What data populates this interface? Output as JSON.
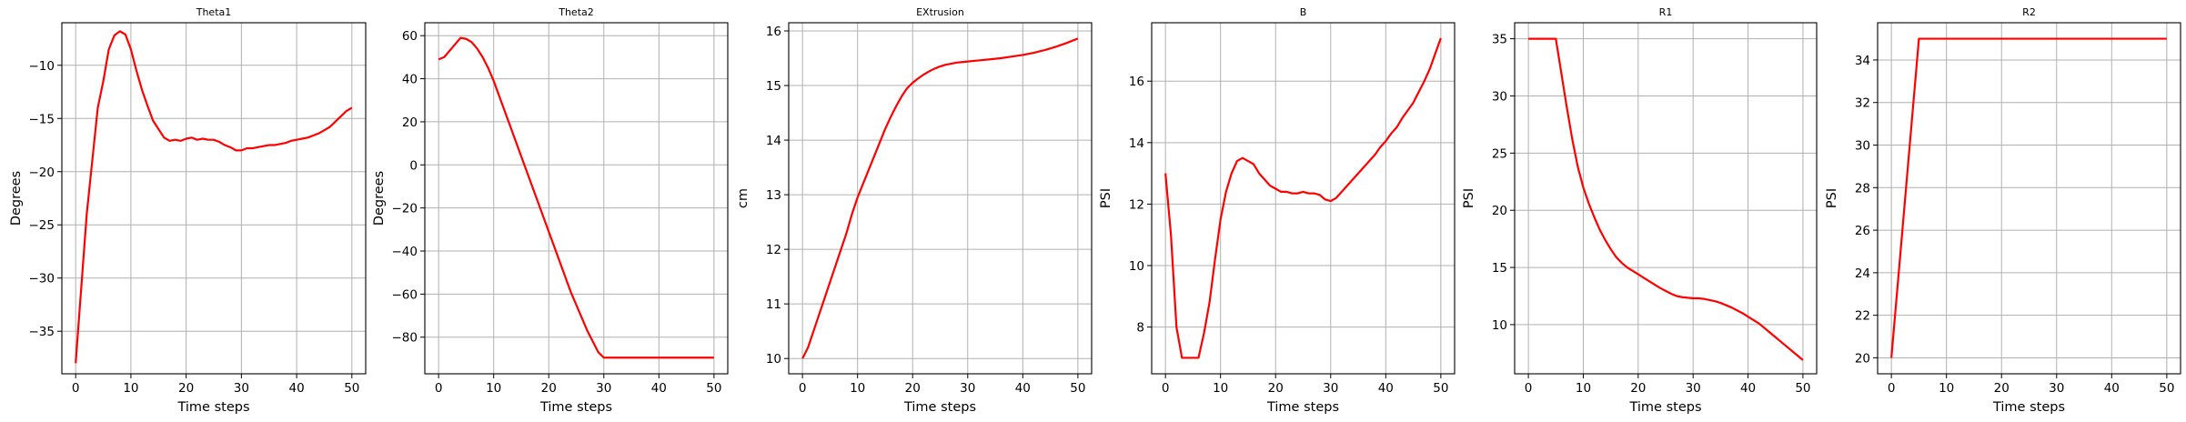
{
  "figure": {
    "background": "#ffffff",
    "line_color": "#ff0000",
    "grid_color": "#b0b0b0"
  },
  "chart_data": [
    {
      "type": "line",
      "title": "Theta1",
      "xlabel": "Time steps",
      "ylabel": "Degrees",
      "xlim": [
        -2.5,
        52.5
      ],
      "ylim": [
        -39,
        -6
      ],
      "xticks": [
        0,
        10,
        20,
        30,
        40,
        50
      ],
      "yticks": [
        -35,
        -30,
        -25,
        -20,
        -15,
        -10
      ],
      "grid": true,
      "series": [
        {
          "color": "#ff0000",
          "x": [
            0,
            1,
            2,
            3,
            4,
            5,
            6,
            7,
            8,
            9,
            10,
            11,
            12,
            13,
            14,
            15,
            16,
            17,
            18,
            19,
            20,
            21,
            22,
            23,
            24,
            25,
            26,
            27,
            28,
            29,
            30,
            31,
            32,
            33,
            34,
            35,
            36,
            37,
            38,
            39,
            40,
            41,
            42,
            43,
            44,
            45,
            46,
            47,
            48,
            49,
            50
          ],
          "y": [
            -38,
            -31,
            -24,
            -19,
            -14,
            -11.5,
            -8.5,
            -7.2,
            -6.8,
            -7.1,
            -8.5,
            -10.5,
            -12.3,
            -13.8,
            -15.2,
            -16,
            -16.8,
            -17.1,
            -17,
            -17.1,
            -16.9,
            -16.8,
            -17,
            -16.9,
            -17,
            -17,
            -17.2,
            -17.5,
            -17.7,
            -18,
            -18,
            -17.8,
            -17.8,
            -17.7,
            -17.6,
            -17.5,
            -17.5,
            -17.4,
            -17.3,
            -17.1,
            -17,
            -16.9,
            -16.8,
            -16.6,
            -16.4,
            -16.1,
            -15.8,
            -15.3,
            -14.8,
            -14.3,
            -14
          ]
        }
      ]
    },
    {
      "type": "line",
      "title": "Theta2",
      "xlabel": "Time steps",
      "ylabel": "Degrees",
      "xlim": [
        -2.5,
        52.5
      ],
      "ylim": [
        -97,
        66
      ],
      "xticks": [
        0,
        10,
        20,
        30,
        40,
        50
      ],
      "yticks": [
        -80,
        -60,
        -40,
        -20,
        0,
        20,
        40,
        60
      ],
      "grid": true,
      "series": [
        {
          "color": "#ff0000",
          "x": [
            0,
            1,
            2,
            3,
            4,
            5,
            6,
            7,
            8,
            9,
            10,
            11,
            12,
            13,
            14,
            15,
            16,
            17,
            18,
            19,
            20,
            21,
            22,
            23,
            24,
            25,
            26,
            27,
            28,
            29,
            30,
            35,
            40,
            45,
            50
          ],
          "y": [
            49,
            50,
            53,
            56,
            59,
            58.5,
            57,
            54,
            50,
            45,
            39,
            32,
            25,
            18,
            11,
            4,
            -3,
            -10,
            -17,
            -24,
            -31,
            -38,
            -45,
            -52,
            -59,
            -65,
            -71,
            -77,
            -82,
            -87,
            -89.5,
            -89.5,
            -89.5,
            -89.5,
            -89.5
          ]
        }
      ]
    },
    {
      "type": "line",
      "title": "EXtrusion",
      "xlabel": "Time steps",
      "ylabel": "cm",
      "xlim": [
        -2.5,
        52.5
      ],
      "ylim": [
        9.72,
        16.15
      ],
      "xticks": [
        0,
        10,
        20,
        30,
        40,
        50
      ],
      "yticks": [
        10,
        11,
        12,
        13,
        14,
        15,
        16
      ],
      "grid": true,
      "series": [
        {
          "color": "#ff0000",
          "x": [
            0,
            1,
            2,
            3,
            4,
            5,
            6,
            7,
            8,
            9,
            10,
            11,
            12,
            13,
            14,
            15,
            16,
            17,
            18,
            19,
            20,
            21,
            22,
            23,
            24,
            25,
            26,
            27,
            28,
            29,
            30,
            32,
            34,
            36,
            38,
            40,
            42,
            44,
            46,
            48,
            50
          ],
          "y": [
            10,
            10.2,
            10.5,
            10.8,
            11.1,
            11.4,
            11.7,
            12,
            12.3,
            12.65,
            12.95,
            13.2,
            13.45,
            13.7,
            13.95,
            14.2,
            14.42,
            14.62,
            14.8,
            14.95,
            15.05,
            15.13,
            15.2,
            15.26,
            15.31,
            15.35,
            15.38,
            15.4,
            15.42,
            15.43,
            15.44,
            15.46,
            15.48,
            15.5,
            15.53,
            15.56,
            15.6,
            15.65,
            15.71,
            15.78,
            15.86
          ]
        }
      ]
    },
    {
      "type": "line",
      "title": "B",
      "xlabel": "Time steps",
      "ylabel": "PSI",
      "xlim": [
        -2.5,
        52.5
      ],
      "ylim": [
        6.48,
        17.9
      ],
      "xticks": [
        0,
        10,
        20,
        30,
        40,
        50
      ],
      "yticks": [
        8,
        10,
        12,
        14,
        16
      ],
      "grid": true,
      "series": [
        {
          "color": "#ff0000",
          "x": [
            0,
            1,
            2,
            3,
            4,
            5,
            6,
            7,
            8,
            9,
            10,
            11,
            12,
            13,
            14,
            15,
            16,
            17,
            18,
            19,
            20,
            21,
            22,
            23,
            24,
            25,
            26,
            27,
            28,
            29,
            30,
            31,
            32,
            33,
            34,
            35,
            36,
            37,
            38,
            39,
            40,
            41,
            42,
            43,
            44,
            45,
            46,
            47,
            48,
            49,
            50
          ],
          "y": [
            13,
            11,
            8,
            7,
            7,
            7,
            7,
            7.8,
            8.8,
            10.2,
            11.5,
            12.4,
            13,
            13.4,
            13.5,
            13.4,
            13.3,
            13,
            12.8,
            12.6,
            12.5,
            12.4,
            12.4,
            12.35,
            12.35,
            12.4,
            12.35,
            12.35,
            12.3,
            12.15,
            12.1,
            12.2,
            12.4,
            12.6,
            12.8,
            13,
            13.2,
            13.4,
            13.6,
            13.85,
            14.05,
            14.3,
            14.5,
            14.8,
            15.05,
            15.3,
            15.65,
            16,
            16.4,
            16.9,
            17.4
          ]
        }
      ]
    },
    {
      "type": "line",
      "title": "R1",
      "xlabel": "Time steps",
      "ylabel": "PSI",
      "xlim": [
        -2.5,
        52.5
      ],
      "ylim": [
        5.7,
        36.4
      ],
      "xticks": [
        0,
        10,
        20,
        30,
        40,
        50
      ],
      "yticks": [
        10,
        15,
        20,
        25,
        30,
        35
      ],
      "grid": true,
      "series": [
        {
          "color": "#ff0000",
          "x": [
            0,
            1,
            2,
            3,
            4,
            5,
            6,
            7,
            8,
            9,
            10,
            11,
            12,
            13,
            14,
            15,
            16,
            17,
            18,
            19,
            20,
            21,
            22,
            23,
            24,
            25,
            26,
            27,
            28,
            29,
            30,
            31,
            32,
            33,
            34,
            35,
            36,
            37,
            38,
            39,
            40,
            41,
            42,
            43,
            44,
            45,
            46,
            47,
            48,
            49,
            50
          ],
          "y": [
            35,
            35,
            35,
            35,
            35,
            35,
            32,
            29,
            26.2,
            23.8,
            22,
            20.6,
            19.4,
            18.3,
            17.4,
            16.6,
            15.9,
            15.4,
            15,
            14.7,
            14.4,
            14.1,
            13.8,
            13.5,
            13.2,
            12.95,
            12.7,
            12.5,
            12.4,
            12.35,
            12.3,
            12.3,
            12.25,
            12.15,
            12.05,
            11.9,
            11.7,
            11.5,
            11.25,
            11,
            10.7,
            10.4,
            10.1,
            9.7,
            9.3,
            8.9,
            8.5,
            8.1,
            7.7,
            7.3,
            6.9
          ]
        }
      ]
    },
    {
      "type": "line",
      "title": "R2",
      "xlabel": "Time steps",
      "ylabel": "PSI",
      "xlim": [
        -2.5,
        52.5
      ],
      "ylim": [
        19.25,
        35.75
      ],
      "xticks": [
        0,
        10,
        20,
        30,
        40,
        50
      ],
      "yticks": [
        20,
        22,
        24,
        26,
        28,
        30,
        32,
        34
      ],
      "grid": true,
      "series": [
        {
          "color": "#ff0000",
          "x": [
            0,
            5,
            10,
            20,
            30,
            40,
            50
          ],
          "y": [
            20,
            35,
            35,
            35,
            35,
            35,
            35
          ]
        }
      ]
    }
  ]
}
